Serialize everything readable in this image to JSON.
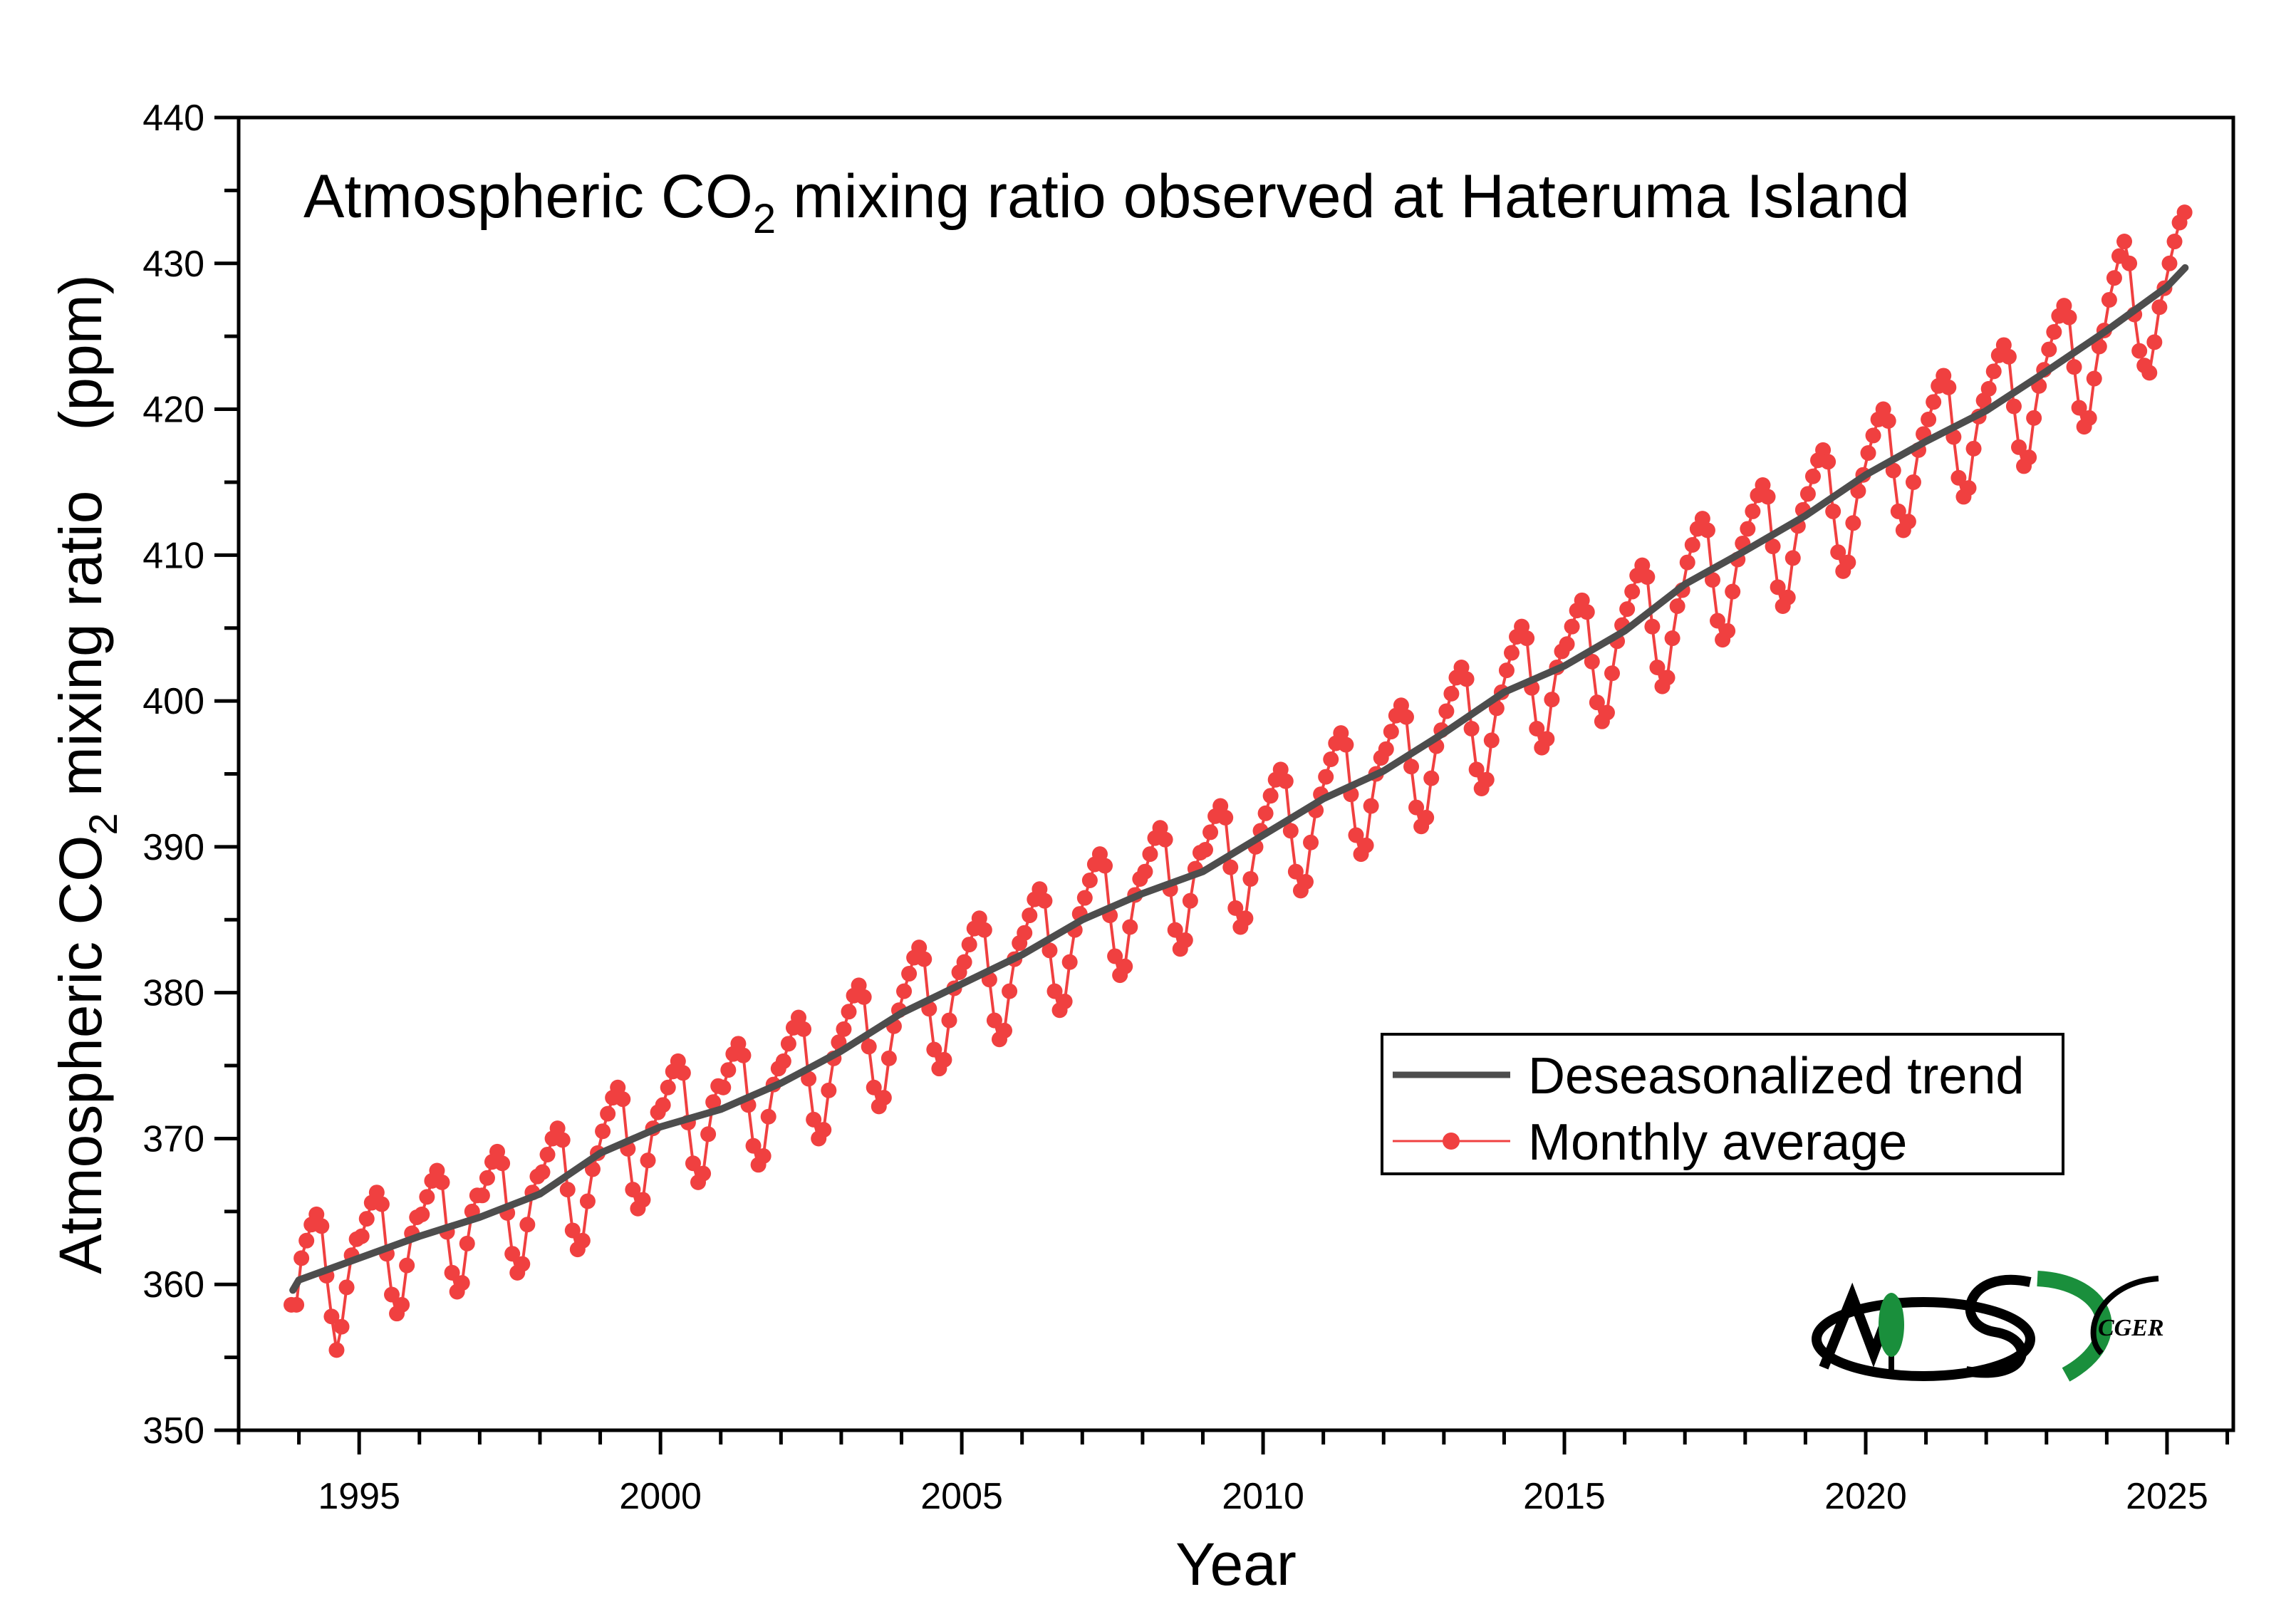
{
  "chart_data": {
    "type": "line",
    "title": {
      "main": "Atmospheric CO",
      "sub": "2",
      "rest": " mixing ratio observed at Hateruma Island"
    },
    "xlabel": "Year",
    "ylabel": {
      "main": "Atmospheric CO",
      "sub": "2",
      "rest": " mixing ratio　(ppm)"
    },
    "xlim": [
      1993,
      2026.1
    ],
    "ylim": [
      350,
      440
    ],
    "xticks": [
      1995,
      2000,
      2005,
      2010,
      2015,
      2020,
      2025
    ],
    "yticks": [
      350,
      360,
      370,
      380,
      390,
      400,
      410,
      420,
      430,
      440
    ],
    "grid": false,
    "legend": {
      "placement": "bottom-right",
      "entries": [
        "Deseasonalized trend",
        "Monthly average"
      ]
    },
    "colors": {
      "trend": "#4d4d4d",
      "monthly": "#f04040"
    },
    "series": [
      {
        "name": "Deseasonalized trend",
        "x": [
          1993.9,
          1994,
          1995,
          1996,
          1997,
          1998,
          1999,
          2000,
          2001,
          2002,
          2003,
          2004,
          2005,
          2006,
          2007,
          2008,
          2009,
          2010,
          2011,
          2012,
          2013,
          2014,
          2015,
          2016,
          2017,
          2018,
          2019,
          2020,
          2021,
          2022,
          2023,
          2024,
          2025,
          2025.3
        ],
        "y": [
          359.6,
          360.3,
          361.8,
          363.3,
          364.6,
          366.2,
          369.0,
          370.8,
          372.0,
          373.8,
          376.0,
          378.6,
          380.6,
          382.6,
          385.0,
          386.8,
          388.3,
          390.8,
          393.3,
          395.2,
          397.8,
          400.6,
          402.4,
          404.8,
          408.0,
          410.3,
          412.7,
          415.5,
          417.8,
          419.9,
          422.6,
          425.4,
          428.4,
          429.7
        ]
      },
      {
        "name": "Monthly average",
        "start": "1993-11",
        "monthly_by_year": {
          "1993": [
            null,
            null,
            null,
            null,
            null,
            null,
            null,
            null,
            null,
            null,
            358.6,
            358.6
          ],
          "1994": [
            361.8,
            363.0,
            364.1,
            364.8,
            364.0,
            360.6,
            357.8,
            355.5,
            357.1,
            359.8,
            362.0,
            363.1
          ],
          "1995": [
            363.3,
            364.5,
            365.6,
            366.3,
            365.5,
            362.1,
            359.3,
            358.0,
            358.6,
            361.3,
            363.5,
            364.6
          ],
          "1996": [
            364.8,
            366.0,
            367.1,
            367.8,
            367.0,
            363.6,
            360.8,
            359.5,
            360.1,
            362.8,
            365.0,
            366.1
          ],
          "1997": [
            366.1,
            367.3,
            368.4,
            369.1,
            368.3,
            364.9,
            362.1,
            360.8,
            361.4,
            364.1,
            366.3,
            367.4
          ],
          "1998": [
            367.7,
            368.9,
            370.0,
            370.7,
            369.9,
            366.5,
            363.7,
            362.4,
            363.0,
            365.7,
            367.9,
            369.0
          ],
          "1999": [
            370.5,
            371.7,
            372.8,
            373.5,
            372.7,
            369.3,
            366.5,
            365.2,
            365.8,
            368.5,
            370.7,
            371.8
          ],
          "2000": [
            372.3,
            373.5,
            374.6,
            375.3,
            374.5,
            371.1,
            368.3,
            367.0,
            367.6,
            370.3,
            372.5,
            373.6
          ],
          "2001": [
            373.5,
            374.7,
            375.8,
            376.5,
            375.7,
            372.3,
            369.5,
            368.2,
            368.8,
            371.5,
            373.7,
            374.8
          ],
          "2002": [
            375.3,
            376.5,
            377.6,
            378.3,
            377.5,
            374.1,
            371.3,
            370.0,
            370.6,
            373.3,
            375.5,
            376.6
          ],
          "2003": [
            377.5,
            378.7,
            379.8,
            380.5,
            379.7,
            376.3,
            373.5,
            372.2,
            372.8,
            375.5,
            377.7,
            378.8
          ],
          "2004": [
            380.1,
            381.3,
            382.4,
            383.1,
            382.3,
            378.9,
            376.1,
            374.8,
            375.4,
            378.1,
            380.3,
            381.4
          ],
          "2005": [
            382.1,
            383.3,
            384.4,
            385.1,
            384.3,
            380.9,
            378.1,
            376.8,
            377.4,
            380.1,
            382.3,
            383.4
          ],
          "2006": [
            384.1,
            385.3,
            386.4,
            387.1,
            386.3,
            382.9,
            380.1,
            378.8,
            379.4,
            382.1,
            384.3,
            385.4
          ],
          "2007": [
            386.5,
            387.7,
            388.8,
            389.5,
            388.7,
            385.3,
            382.5,
            381.2,
            381.8,
            384.5,
            386.7,
            387.8
          ],
          "2008": [
            388.3,
            389.5,
            390.6,
            391.3,
            390.5,
            387.1,
            384.3,
            383.0,
            383.6,
            386.3,
            388.5,
            389.6
          ],
          "2009": [
            389.8,
            391.0,
            392.1,
            392.8,
            392.0,
            388.6,
            385.8,
            384.5,
            385.1,
            387.8,
            390.0,
            391.1
          ],
          "2010": [
            392.3,
            393.5,
            394.6,
            395.3,
            394.5,
            391.1,
            388.3,
            387.0,
            387.6,
            390.3,
            392.5,
            393.6
          ],
          "2011": [
            394.8,
            396.0,
            397.1,
            397.8,
            397.0,
            393.6,
            390.8,
            389.5,
            390.1,
            392.8,
            395.0,
            396.1
          ],
          "2012": [
            396.7,
            397.9,
            399.0,
            399.7,
            398.9,
            395.5,
            392.7,
            391.4,
            392.0,
            394.7,
            396.9,
            398.0
          ],
          "2013": [
            399.3,
            400.5,
            401.6,
            402.3,
            401.5,
            398.1,
            395.3,
            394.0,
            394.6,
            397.3,
            399.5,
            400.6
          ],
          "2014": [
            402.1,
            403.3,
            404.4,
            405.1,
            404.3,
            400.9,
            398.1,
            396.8,
            397.4,
            400.1,
            402.3,
            403.4
          ],
          "2015": [
            403.9,
            405.1,
            406.2,
            406.9,
            406.1,
            402.7,
            399.9,
            398.6,
            399.2,
            401.9,
            404.1,
            405.2
          ],
          "2016": [
            406.3,
            407.5,
            408.6,
            409.3,
            408.5,
            405.1,
            402.3,
            401.0,
            401.6,
            404.3,
            406.5,
            407.6
          ],
          "2017": [
            409.5,
            410.7,
            411.8,
            412.5,
            411.7,
            408.3,
            405.5,
            404.2,
            404.8,
            407.5,
            409.7,
            410.8
          ],
          "2018": [
            411.8,
            413.0,
            414.1,
            414.8,
            414.0,
            410.6,
            407.8,
            406.5,
            407.1,
            409.8,
            412.0,
            413.1
          ],
          "2019": [
            414.2,
            415.4,
            416.5,
            417.2,
            416.4,
            413.0,
            410.2,
            408.9,
            409.5,
            412.2,
            414.4,
            415.5
          ],
          "2020": [
            417.0,
            418.2,
            419.3,
            420.0,
            419.2,
            415.8,
            413.0,
            411.7,
            412.3,
            415.0,
            417.2,
            418.3
          ],
          "2021": [
            419.3,
            420.5,
            421.6,
            422.3,
            421.5,
            418.1,
            415.3,
            414.0,
            414.6,
            417.3,
            419.5,
            420.6
          ],
          "2022": [
            421.4,
            422.6,
            423.7,
            424.4,
            423.6,
            420.2,
            417.4,
            416.1,
            416.7,
            419.4,
            421.6,
            422.7
          ],
          "2023": [
            424.1,
            425.3,
            426.4,
            427.1,
            426.3,
            422.9,
            420.1,
            418.8,
            419.4,
            422.1,
            424.3,
            425.4
          ],
          "2024": [
            427.5,
            429.0,
            430.5,
            431.5,
            430.0,
            426.5,
            424.0,
            423.0,
            422.5,
            424.6,
            427.0,
            428.3
          ],
          "2025": [
            430.0,
            431.5,
            432.8,
            433.5,
            null,
            null,
            null,
            null,
            null,
            null,
            null,
            null
          ]
        }
      }
    ]
  },
  "logos": {
    "nies": "NIES",
    "cger": "CGER"
  }
}
